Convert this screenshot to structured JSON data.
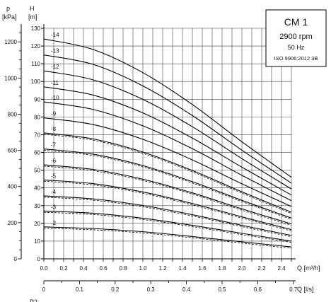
{
  "chart_data": {
    "type": "line",
    "legend_box": {
      "model": "CM 1",
      "speed": "2900 rpm",
      "frequency": "50 Hz",
      "standard": "ISO 9906:2012 3B"
    },
    "left_axis": {
      "unit_symbol": "p",
      "unit": "[kPa]",
      "ticks": [
        0,
        200,
        400,
        600,
        800,
        1000,
        1200
      ]
    },
    "y_axis": {
      "symbol": "H",
      "unit": "[m]",
      "range": [
        0,
        130
      ],
      "ticks": [
        0,
        10,
        20,
        30,
        40,
        50,
        60,
        70,
        80,
        90,
        100,
        110,
        120,
        130
      ]
    },
    "x_axis": {
      "label": "Q [m³/h]",
      "range": [
        0,
        2.5
      ],
      "ticks": [
        0.0,
        0.2,
        0.4,
        0.6,
        0.8,
        1.0,
        1.2,
        1.4,
        1.6,
        1.8,
        2.0,
        2.2,
        2.4
      ]
    },
    "x2_axis": {
      "label": "Q [l/s]",
      "ticks": [
        0,
        0.1,
        0.2,
        0.3,
        0.4,
        0.5,
        0.6,
        0.7
      ]
    },
    "bottom_cut_label": "P2",
    "grid": true,
    "dashed_curves_for_stages": [
      "-2",
      "-3",
      "-4",
      "-5",
      "-6",
      "-7",
      "-8"
    ],
    "series": [
      {
        "name": "-14",
        "x": [
          0,
          0.5,
          1.0,
          1.5,
          2.0,
          2.5
        ],
        "y": [
          124,
          118,
          105,
          87,
          66,
          46
        ]
      },
      {
        "name": "-13",
        "x": [
          0,
          0.5,
          1.0,
          1.5,
          2.0,
          2.5
        ],
        "y": [
          115,
          109.6,
          97.5,
          80.8,
          61.3,
          42.7
        ]
      },
      {
        "name": "-12",
        "x": [
          0,
          0.5,
          1.0,
          1.5,
          2.0,
          2.5
        ],
        "y": [
          106,
          100.9,
          89.9,
          74.5,
          56.5,
          39.4
        ]
      },
      {
        "name": "-11",
        "x": [
          0,
          0.5,
          1.0,
          1.5,
          2.0,
          2.5
        ],
        "y": [
          97,
          92.3,
          82.3,
          68.1,
          51.7,
          36
        ]
      },
      {
        "name": "-10",
        "x": [
          0,
          0.5,
          1.0,
          1.5,
          2.0,
          2.5
        ],
        "y": [
          88.5,
          84.2,
          75,
          62.1,
          47.1,
          32.8
        ]
      },
      {
        "name": "-9",
        "x": [
          0,
          0.5,
          1.0,
          1.5,
          2.0,
          2.5
        ],
        "y": [
          79.5,
          75.7,
          67.4,
          55.8,
          42.3,
          29.5
        ]
      },
      {
        "name": "-8",
        "x": [
          0,
          0.5,
          1.0,
          1.5,
          2.0,
          2.5
        ],
        "y": [
          71,
          67.6,
          60.2,
          49.8,
          37.8,
          26.3
        ]
      },
      {
        "name": "-7",
        "x": [
          0,
          0.5,
          1.0,
          1.5,
          2.0,
          2.5
        ],
        "y": [
          62,
          59,
          52.6,
          43.5,
          33,
          23
        ]
      },
      {
        "name": "-6",
        "x": [
          0,
          0.5,
          1.0,
          1.5,
          2.0,
          2.5
        ],
        "y": [
          53,
          50.4,
          44.9,
          37.2,
          28.2,
          19.7
        ]
      },
      {
        "name": "-5",
        "x": [
          0,
          0.5,
          1.0,
          1.5,
          2.0,
          2.5
        ],
        "y": [
          44.5,
          42.4,
          37.7,
          31.2,
          23.7,
          16.5
        ]
      },
      {
        "name": "-4",
        "x": [
          0,
          0.5,
          1.0,
          1.5,
          2.0,
          2.5
        ],
        "y": [
          35.5,
          33.8,
          30.1,
          24.9,
          18.9,
          13.2
        ]
      },
      {
        "name": "-3",
        "x": [
          0,
          0.5,
          1.0,
          1.5,
          2.0,
          2.5
        ],
        "y": [
          27,
          25.7,
          22.9,
          18.9,
          14.4,
          10
        ]
      },
      {
        "name": "-2",
        "x": [
          0,
          0.5,
          1.0,
          1.5,
          2.0,
          2.5
        ],
        "y": [
          18,
          17.1,
          15.3,
          12.6,
          9.6,
          6.7
        ]
      }
    ]
  }
}
